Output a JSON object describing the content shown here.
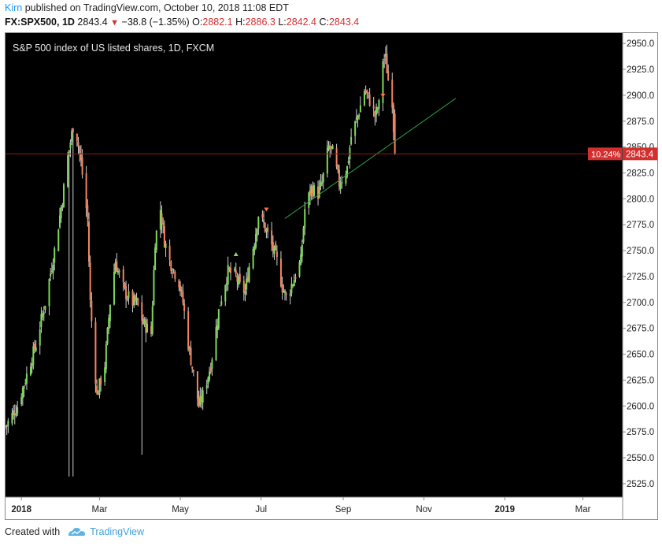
{
  "header": {
    "author": "Kirn",
    "published_text": "published on TradingView.com, October 10, 2018 11:08 EDT",
    "symbol": "FX:SPX500, 1D",
    "price": "2843.4",
    "change": "−38.8 (−1.35%)",
    "o_label": "O:",
    "o_value": "2882.1",
    "h_label": "H:",
    "h_value": "2886.3",
    "l_label": "L:",
    "l_value": "2842.4",
    "c_label": "C:",
    "c_value": "2843.4"
  },
  "footer": {
    "created_with": "Created with",
    "brand": "TradingView"
  },
  "colors": {
    "background": "#000000",
    "up": "#7ed957",
    "down": "#f4845f",
    "trendline": "#2ea043",
    "price_tag": "#d32f2f"
  },
  "chart_data": {
    "type": "candlestick",
    "title": "S&P 500 index of US listed shares, 1D, FXCM",
    "ylim": [
      2512,
      2960
    ],
    "y_ticks": [
      "2525.0",
      "2550.0",
      "2575.0",
      "2600.0",
      "2625.0",
      "2650.0",
      "2675.0",
      "2700.0",
      "2725.0",
      "2750.0",
      "2775.0",
      "2800.0",
      "2825.0",
      "2850.0",
      "2875.0",
      "2900.0",
      "2925.0",
      "2950.0"
    ],
    "x_ticks": [
      "2018",
      "Mar",
      "May",
      "Jul",
      "Sep",
      "Nov",
      "2019",
      "Mar"
    ],
    "x_range": [
      "2017-12-20",
      "2019-03-31"
    ],
    "x_tick_dates": [
      "2018-01-01",
      "2018-03-01",
      "2018-05-01",
      "2018-07-01",
      "2018-09-01",
      "2018-11-01",
      "2019-01-01",
      "2019-03-01"
    ],
    "grid": false,
    "last_price": {
      "value": 2843.4,
      "label": "2843.4",
      "pct_label": "10.24%"
    },
    "trendline": {
      "x1": "2018-07-19",
      "y1": 2781,
      "x2": "2018-11-25",
      "y2": 2897
    },
    "markers": [
      {
        "date": "2018-06-12",
        "price": 2747,
        "dir": "up"
      },
      {
        "date": "2018-07-05",
        "price": 2790,
        "dir": "down"
      },
      {
        "date": "2018-10-01",
        "price": 2900,
        "dir": "down"
      }
    ],
    "path_points": [
      [
        "2017-12-20",
        2580
      ],
      [
        "2017-12-29",
        2600
      ],
      [
        "2018-01-05",
        2630
      ],
      [
        "2018-01-12",
        2660
      ],
      [
        "2018-01-19",
        2700
      ],
      [
        "2018-01-26",
        2750
      ],
      [
        "2018-02-01",
        2800
      ],
      [
        "2018-02-05",
        2840
      ],
      [
        "2018-02-09",
        2870
      ],
      [
        "2018-02-12",
        2860
      ],
      [
        "2018-02-15",
        2835
      ],
      [
        "2018-02-20",
        2780
      ],
      [
        "2018-02-22",
        2700
      ],
      [
        "2018-02-27",
        2610
      ],
      [
        "2018-03-05",
        2640
      ],
      [
        "2018-03-09",
        2700
      ],
      [
        "2018-03-13",
        2740
      ],
      [
        "2018-03-15",
        2730
      ],
      [
        "2018-03-20",
        2710
      ],
      [
        "2018-03-26",
        2700
      ],
      [
        "2018-03-29",
        2700
      ],
      [
        "2018-04-03",
        2680
      ],
      [
        "2018-04-09",
        2670
      ],
      [
        "2018-04-12",
        2760
      ],
      [
        "2018-04-16",
        2790
      ],
      [
        "2018-04-19",
        2760
      ],
      [
        "2018-04-23",
        2740
      ],
      [
        "2018-04-30",
        2720
      ],
      [
        "2018-05-03",
        2700
      ],
      [
        "2018-05-07",
        2660
      ],
      [
        "2018-05-11",
        2630
      ],
      [
        "2018-05-15",
        2600
      ],
      [
        "2018-05-18",
        2610
      ],
      [
        "2018-05-24",
        2640
      ],
      [
        "2018-05-31",
        2700
      ],
      [
        "2018-06-06",
        2730
      ],
      [
        "2018-06-12",
        2725
      ],
      [
        "2018-06-15",
        2715
      ],
      [
        "2018-06-19",
        2710
      ],
      [
        "2018-06-22",
        2735
      ],
      [
        "2018-06-26",
        2760
      ],
      [
        "2018-06-29",
        2785
      ],
      [
        "2018-07-03",
        2775
      ],
      [
        "2018-07-09",
        2755
      ],
      [
        "2018-07-13",
        2740
      ],
      [
        "2018-07-17",
        2715
      ],
      [
        "2018-07-20",
        2705
      ],
      [
        "2018-07-25",
        2720
      ],
      [
        "2018-07-31",
        2740
      ],
      [
        "2018-08-03",
        2790
      ],
      [
        "2018-08-08",
        2810
      ],
      [
        "2018-08-13",
        2805
      ],
      [
        "2018-08-16",
        2815
      ],
      [
        "2018-08-21",
        2850
      ],
      [
        "2018-08-24",
        2845
      ],
      [
        "2018-08-29",
        2815
      ],
      [
        "2018-09-04",
        2830
      ],
      [
        "2018-09-07",
        2860
      ],
      [
        "2018-09-12",
        2880
      ],
      [
        "2018-09-17",
        2905
      ],
      [
        "2018-09-21",
        2895
      ],
      [
        "2018-09-25",
        2880
      ],
      [
        "2018-09-28",
        2890
      ],
      [
        "2018-10-01",
        2935
      ],
      [
        "2018-10-03",
        2935
      ],
      [
        "2018-10-05",
        2915
      ],
      [
        "2018-10-08",
        2895
      ],
      [
        "2018-10-10",
        2843
      ]
    ]
  }
}
